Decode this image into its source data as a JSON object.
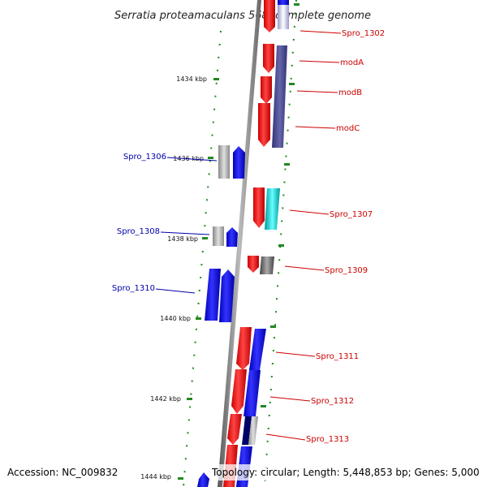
{
  "title": "Serratia proteamaculans 568, complete genome",
  "accession": "Accession: NC_009832",
  "topology": "Topology: circular; Length: 5,448,853 bp; Genes: 5,000",
  "ticks": [
    "1434 kbp",
    "1436 kbp",
    "1438 kbp",
    "1440 kbp",
    "1442 kbp",
    "1444 kbp"
  ],
  "right_labels": [
    "Spro_1302",
    "modA",
    "modB",
    "modC",
    "Spro_1307",
    "Spro_1309",
    "Spro_1311",
    "Spro_1312",
    "Spro_1313"
  ],
  "left_labels": [
    "Spro_1306",
    "Spro_1308",
    "Spro_1310"
  ],
  "colors": {
    "forward": "#ff0000",
    "reverse": "#0000ff",
    "cog": "#55559a",
    "grey": "#a0a0a0",
    "cyan": "#00cccc",
    "dots": "#228822",
    "right_label": "#cc0000",
    "left_label": "#0000aa"
  }
}
